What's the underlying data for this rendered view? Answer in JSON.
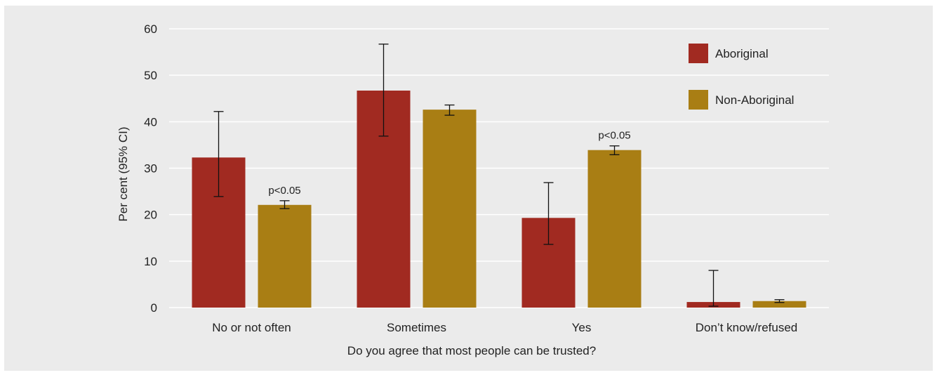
{
  "chart_data": {
    "type": "bar",
    "xlabel": "Do you agree that most people can be trusted?",
    "ylabel": "Per cent (95% CI)",
    "ylim": [
      0,
      60
    ],
    "yticks": [
      0,
      10,
      20,
      30,
      40,
      50,
      60
    ],
    "grid": true,
    "legend_position": "top-right",
    "categories": [
      "No or not often",
      "Sometimes",
      "Yes",
      "Don’t know/refused"
    ],
    "series": [
      {
        "name": "Aboriginal",
        "color": "#a12a21",
        "values": [
          32.3,
          46.7,
          19.3,
          1.2
        ],
        "ci_low": [
          23.9,
          36.9,
          13.6,
          0.3
        ],
        "ci_high": [
          42.2,
          56.7,
          26.9,
          8.0
        ]
      },
      {
        "name": "Non-Aboriginal",
        "color": "#a97e14",
        "values": [
          22.1,
          42.6,
          33.9,
          1.4
        ],
        "ci_low": [
          21.3,
          41.4,
          32.9,
          1.1
        ],
        "ci_high": [
          23.0,
          43.6,
          34.8,
          1.7
        ]
      }
    ],
    "annotations": [
      {
        "category_index": 0,
        "series_index": 1,
        "text": "p<0.05"
      },
      {
        "category_index": 2,
        "series_index": 1,
        "text": "p<0.05"
      }
    ]
  }
}
